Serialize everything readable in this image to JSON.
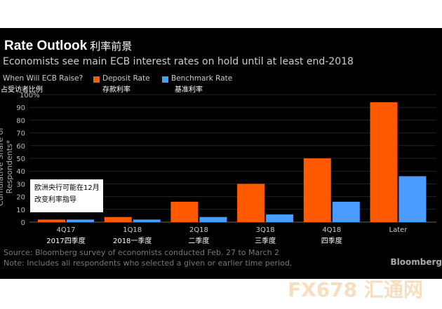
{
  "chart_data": {
    "type": "bar",
    "title": "Rate Outlook",
    "title_cn": "利率前景",
    "subtitle": "Economists see main ECB interest rates on hold until at least end-2018",
    "legend_title": "When Will ECB Raise?",
    "legend_title_cn": "占受访者比例",
    "ylabel": "Cumulative Share of Respondents*",
    "ylim": [
      0,
      100
    ],
    "yticks": [
      "0",
      "10",
      "20",
      "30",
      "40",
      "50",
      "60",
      "70",
      "80",
      "90",
      "100%"
    ],
    "grid": true,
    "legend_placement": "top-left",
    "categories": [
      "4Q17",
      "1Q18",
      "2Q18",
      "3Q18",
      "4Q18",
      "Later"
    ],
    "categories_cn": [
      "2017四季度",
      "2018一季度",
      "二季度",
      "三季度",
      "四季度",
      ""
    ],
    "series": [
      {
        "name": "Deposit Rate",
        "name_cn": "存款利率",
        "color": "#ff5a00",
        "values": [
          2,
          4,
          16,
          30,
          50,
          94
        ]
      },
      {
        "name": "Benchmark Rate",
        "name_cn": "基准利率",
        "color": "#4a9cff",
        "values": [
          2,
          2,
          4,
          6,
          16,
          36
        ]
      }
    ],
    "annotation": [
      "欧洲央行可能在12月",
      "改变利率指导"
    ]
  },
  "footer": {
    "source": "Source: Bloomberg survey of economists conducted Feb. 27 to March 2",
    "note": "Note: Includes all respondents who selected a given or earlier time period.",
    "brand": "Bloomberg"
  },
  "watermark": "FX678 汇通网"
}
